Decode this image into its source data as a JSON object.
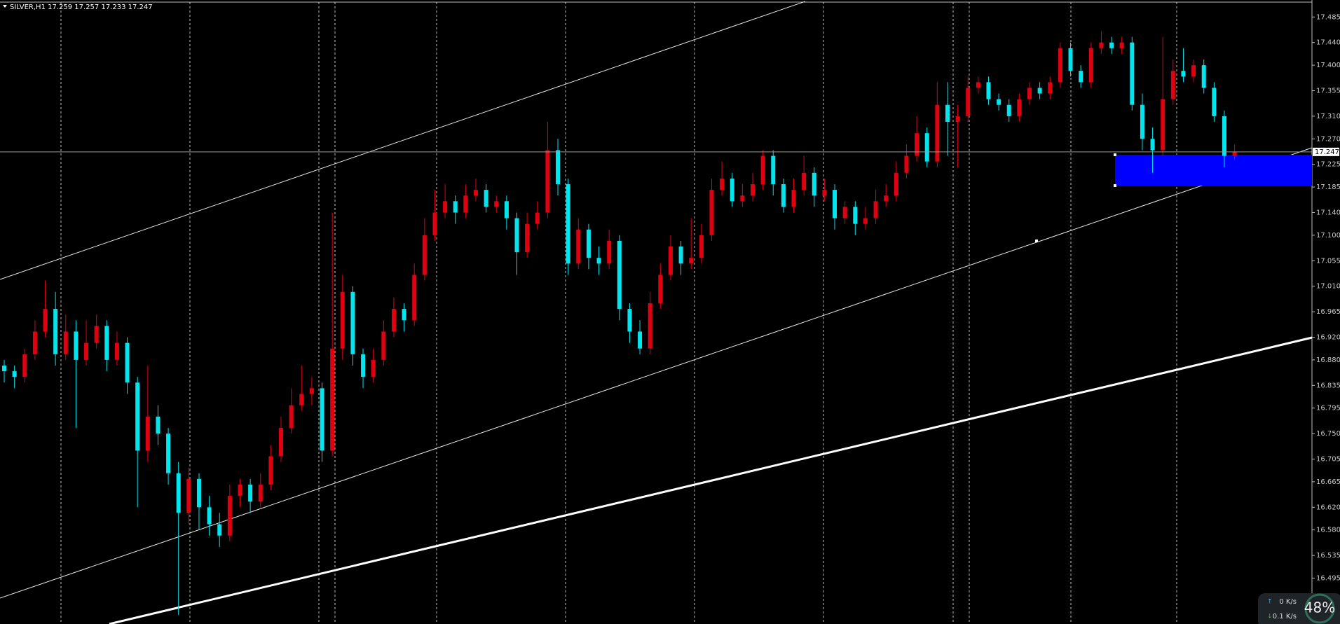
{
  "chart_data": {
    "type": "candlestick",
    "title": "SILVER,H1  17.259 17.257 17.233 17.247",
    "up_color": "#e00010",
    "down_color": "#00e5ee",
    "open": [
      16.87,
      16.86,
      16.85,
      16.89,
      16.93,
      16.97,
      16.89,
      16.93,
      16.88,
      16.91,
      16.94,
      16.88,
      16.91,
      16.84,
      16.72,
      16.78,
      16.75,
      16.68,
      16.61,
      16.67,
      16.62,
      16.59,
      16.57,
      16.64,
      16.66,
      16.63,
      16.66,
      16.71,
      16.76,
      16.8,
      16.82,
      16.83,
      16.72,
      16.9,
      17.0,
      16.89,
      16.85,
      16.88,
      16.93,
      16.97,
      16.95,
      17.03,
      17.1,
      17.14,
      17.16,
      17.14,
      17.17,
      17.18,
      17.15,
      17.16,
      17.13,
      17.07,
      17.12,
      17.14,
      17.25,
      17.19,
      17.05,
      17.11,
      17.06,
      17.05,
      17.09,
      16.97,
      16.93,
      16.9,
      16.98,
      17.03,
      17.08,
      17.05,
      17.06,
      17.1,
      17.18,
      17.2,
      17.16,
      17.17,
      17.19,
      17.24,
      17.19,
      17.15,
      17.18,
      17.21,
      17.17,
      17.18,
      17.13,
      17.15,
      17.12,
      17.13,
      17.16,
      17.17,
      17.21,
      17.24,
      17.28,
      17.23,
      17.33,
      17.3,
      17.31,
      17.36,
      17.37,
      17.34,
      17.33,
      17.31,
      17.34,
      17.36,
      17.35,
      17.37,
      17.43,
      17.39,
      17.37,
      17.43,
      17.44,
      17.43,
      17.44,
      17.33,
      17.27,
      17.25,
      17.34,
      17.39,
      17.38,
      17.4,
      17.36,
      17.31,
      17.24
    ],
    "high": [
      16.88,
      16.87,
      16.9,
      16.95,
      17.02,
      17.0,
      16.96,
      16.95,
      16.95,
      16.96,
      16.95,
      16.93,
      16.92,
      16.85,
      16.87,
      16.8,
      16.76,
      16.7,
      16.69,
      16.68,
      16.64,
      16.61,
      16.66,
      16.67,
      16.67,
      16.68,
      16.73,
      16.78,
      16.83,
      16.87,
      16.85,
      16.84,
      17.14,
      17.03,
      17.01,
      16.9,
      16.9,
      16.95,
      16.99,
      16.98,
      17.05,
      17.13,
      17.18,
      17.19,
      17.17,
      17.19,
      17.2,
      17.19,
      17.17,
      17.17,
      17.14,
      17.14,
      17.16,
      17.3,
      17.27,
      17.2,
      17.13,
      17.12,
      17.08,
      17.11,
      17.1,
      16.98,
      16.95,
      17.0,
      17.05,
      17.1,
      17.09,
      17.13,
      17.12,
      17.2,
      17.23,
      17.21,
      17.19,
      17.21,
      17.25,
      17.25,
      17.2,
      17.2,
      17.24,
      17.22,
      17.2,
      17.19,
      17.16,
      17.16,
      17.15,
      17.18,
      17.19,
      17.23,
      17.26,
      17.31,
      17.29,
      17.37,
      17.37,
      17.33,
      17.38,
      17.38,
      17.38,
      17.35,
      17.34,
      17.35,
      17.37,
      17.37,
      17.38,
      17.44,
      17.44,
      17.4,
      17.44,
      17.46,
      17.45,
      17.45,
      17.45,
      17.35,
      17.29,
      17.45,
      17.41,
      17.43,
      17.41,
      17.41,
      17.37,
      17.32,
      17.26
    ],
    "low": [
      16.84,
      16.83,
      16.84,
      16.88,
      16.92,
      16.87,
      16.88,
      16.76,
      16.87,
      16.9,
      16.86,
      16.87,
      16.82,
      16.62,
      16.7,
      16.73,
      16.66,
      16.43,
      16.59,
      16.58,
      16.57,
      16.55,
      16.56,
      16.62,
      16.61,
      16.62,
      16.65,
      16.7,
      16.75,
      16.79,
      16.8,
      16.7,
      16.71,
      16.88,
      16.87,
      16.83,
      16.84,
      16.87,
      16.92,
      16.93,
      16.94,
      17.02,
      17.09,
      17.13,
      17.12,
      17.13,
      17.16,
      17.14,
      17.14,
      17.11,
      17.03,
      17.06,
      17.11,
      17.13,
      17.17,
      17.03,
      17.04,
      17.04,
      17.03,
      17.04,
      16.95,
      16.91,
      16.89,
      16.89,
      16.97,
      17.02,
      17.03,
      17.04,
      17.05,
      17.09,
      17.17,
      17.15,
      17.15,
      17.16,
      17.18,
      17.17,
      17.14,
      17.14,
      17.17,
      17.15,
      17.16,
      17.11,
      17.12,
      17.1,
      17.11,
      17.12,
      17.15,
      17.16,
      17.2,
      17.23,
      17.22,
      17.22,
      17.24,
      17.22,
      17.3,
      17.35,
      17.33,
      17.32,
      17.3,
      17.3,
      17.33,
      17.34,
      17.34,
      17.36,
      17.38,
      17.36,
      17.36,
      17.42,
      17.42,
      17.42,
      17.32,
      17.25,
      17.21,
      17.24,
      17.33,
      17.37,
      17.37,
      17.35,
      17.3,
      17.22,
      17.233
    ],
    "close": [
      16.86,
      16.85,
      16.89,
      16.93,
      16.97,
      16.89,
      16.93,
      16.88,
      16.91,
      16.94,
      16.88,
      16.91,
      16.84,
      16.72,
      16.78,
      16.75,
      16.68,
      16.61,
      16.67,
      16.62,
      16.59,
      16.57,
      16.64,
      16.66,
      16.63,
      16.66,
      16.71,
      16.76,
      16.8,
      16.82,
      16.83,
      16.72,
      16.9,
      17.0,
      16.89,
      16.85,
      16.88,
      16.93,
      16.97,
      16.95,
      17.03,
      17.1,
      17.14,
      17.16,
      17.14,
      17.17,
      17.18,
      17.15,
      17.16,
      17.13,
      17.07,
      17.12,
      17.14,
      17.25,
      17.19,
      17.05,
      17.11,
      17.06,
      17.05,
      17.09,
      16.97,
      16.93,
      16.9,
      16.98,
      17.03,
      17.08,
      17.05,
      17.06,
      17.1,
      17.18,
      17.2,
      17.16,
      17.17,
      17.19,
      17.24,
      17.19,
      17.15,
      17.18,
      17.21,
      17.17,
      17.18,
      17.13,
      17.15,
      17.12,
      17.13,
      17.16,
      17.17,
      17.21,
      17.24,
      17.28,
      17.23,
      17.33,
      17.3,
      17.31,
      17.36,
      17.37,
      17.34,
      17.33,
      17.31,
      17.34,
      17.36,
      17.35,
      17.37,
      17.43,
      17.39,
      17.37,
      17.43,
      17.44,
      17.43,
      17.44,
      17.33,
      17.27,
      17.25,
      17.34,
      17.39,
      17.38,
      17.4,
      17.36,
      17.31,
      17.24,
      17.247
    ],
    "current_price": 17.247,
    "ylim": [
      16.414,
      17.515
    ],
    "yticks": [
      17.485,
      {
        "value": 17.44,
        "label": "17.440"
      },
      {
        "value": 17.4,
        "label": "17.400"
      },
      17.355,
      {
        "value": 17.31,
        "label": "17.310"
      },
      {
        "value": 17.27,
        "label": "17.270"
      },
      17.225,
      17.185,
      {
        "value": 17.14,
        "label": "17.140"
      },
      {
        "value": 17.1,
        "label": "17.100"
      },
      17.055,
      {
        "value": 17.01,
        "label": "17.010"
      },
      16.965,
      {
        "value": 16.92,
        "label": "16.920"
      },
      {
        "value": 16.88,
        "label": "16.880"
      },
      16.835,
      16.795,
      {
        "value": 16.75,
        "label": "16.750"
      },
      16.705,
      16.665,
      {
        "value": 16.62,
        "label": "16.620"
      },
      {
        "value": 16.58,
        "label": "16.580"
      },
      16.535,
      16.495
    ]
  },
  "status": {
    "upload": "0 K/s",
    "download": "0.1 K/s",
    "cpu": "48%"
  }
}
